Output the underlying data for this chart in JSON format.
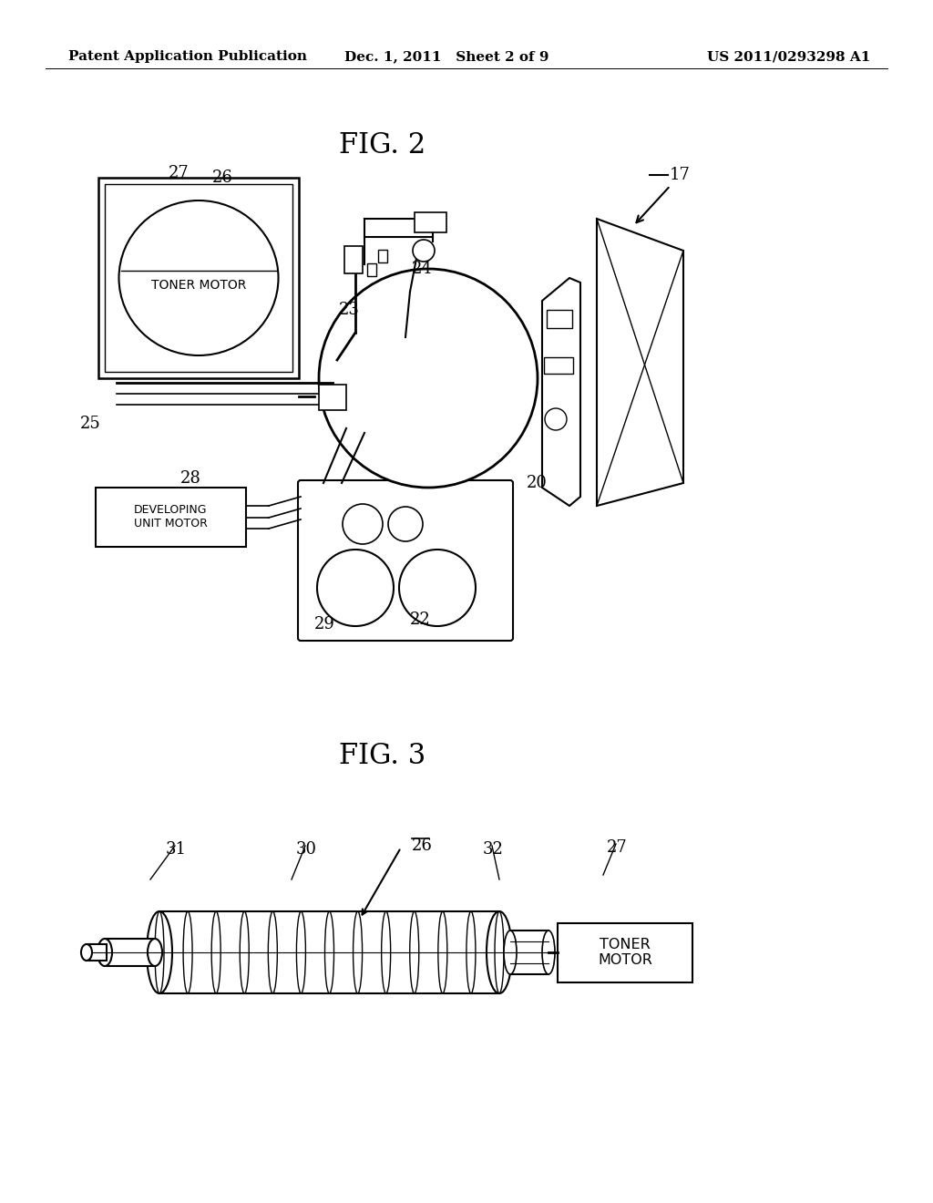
{
  "background_color": "#ffffff",
  "header_left": "Patent Application Publication",
  "header_center": "Dec. 1, 2011   Sheet 2 of 9",
  "header_right": "US 2011/0293298 A1",
  "header_fontsize": 11,
  "fig2_title": "FIG. 2",
  "fig3_title": "FIG. 3",
  "fig_title_fontsize": 22,
  "label_fontsize": 13
}
